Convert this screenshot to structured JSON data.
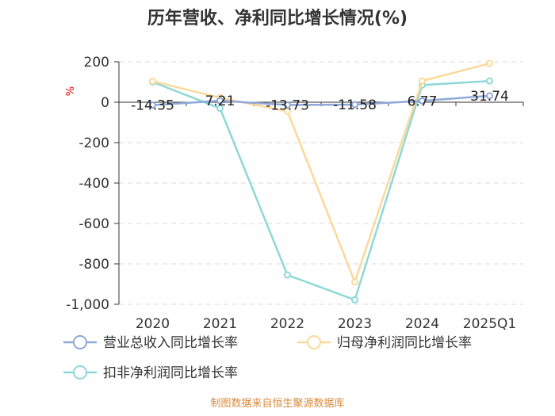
{
  "chart_data": {
    "type": "line",
    "title": "历年营收、净利同比增长情况(%)",
    "ylabel": "%",
    "xlabel": "",
    "categories": [
      "2020",
      "2021",
      "2022",
      "2023",
      "2024",
      "2025Q1"
    ],
    "ylim": [
      -1000,
      200
    ],
    "yticks": [
      200,
      0,
      -200,
      -400,
      -600,
      -800,
      -1000
    ],
    "ytick_labels": [
      "200",
      "0",
      "-200",
      "-400",
      "-600",
      "-800",
      "-1,000"
    ],
    "grid": true,
    "legend_position": "bottom",
    "series": [
      {
        "name": "营业总收入同比增长率",
        "color": "#8fa8d8",
        "values": [
          -14.35,
          7.21,
          -13.73,
          -11.58,
          6.77,
          31.74
        ],
        "data_labels": [
          "-14.35",
          "7.21",
          "-13.73",
          "-11.58",
          "6.77",
          "31.74"
        ]
      },
      {
        "name": "归母净利润同比增长率",
        "color": "#fbd99a",
        "values": [
          104,
          22,
          -45,
          -890,
          105,
          192
        ]
      },
      {
        "name": "扣非净利润同比增长率",
        "color": "#8fd8d8",
        "values": [
          100,
          -30,
          -855,
          -978,
          85,
          105
        ]
      }
    ]
  },
  "source": "制图数据来自恒生聚源数据库"
}
